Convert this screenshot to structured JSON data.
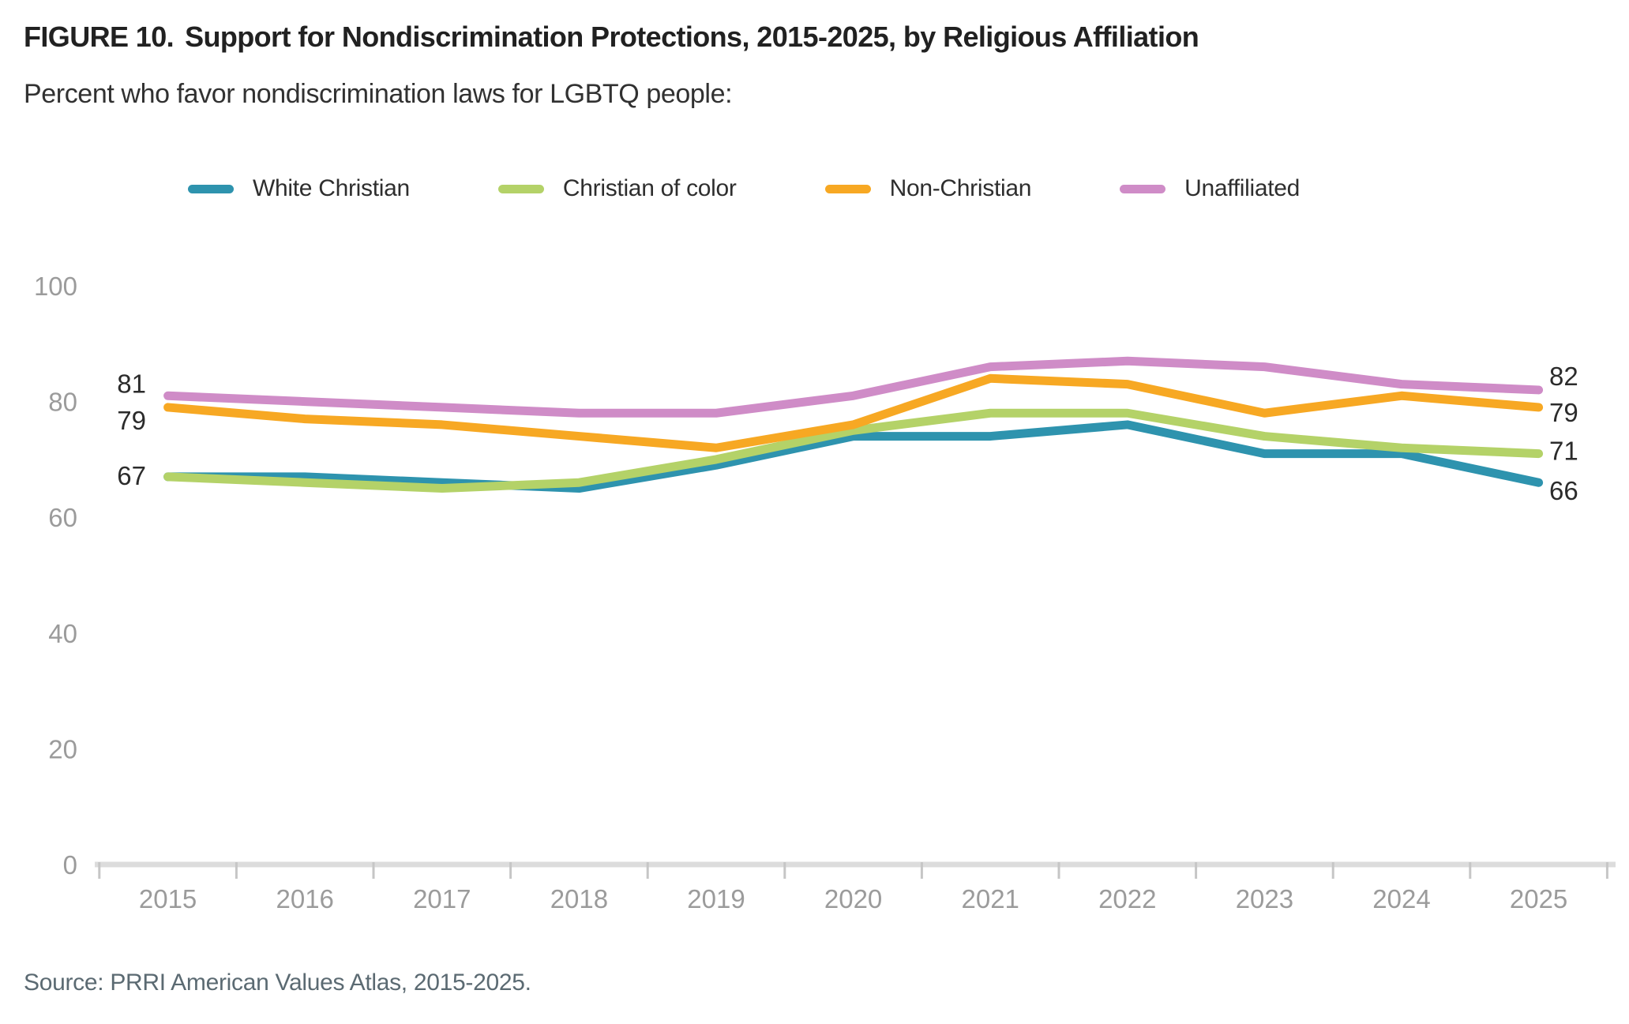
{
  "header": {
    "figure_label": "FIGURE 10.",
    "title": "Support for Nondiscrimination Protections, 2015-2025, by Religious Affiliation",
    "subtitle": "Percent who favor nondiscrimination laws for LGBTQ people:"
  },
  "chart_data": {
    "type": "line",
    "title": "Support for Nondiscrimination Protections, 2015-2025, by Religious Affiliation",
    "categories": [
      2015,
      2016,
      2017,
      2018,
      2019,
      2020,
      2021,
      2022,
      2023,
      2024,
      2025
    ],
    "series": [
      {
        "name": "White Christian",
        "color": "#2e93ae",
        "values": [
          67,
          67,
          66,
          65,
          69,
          74,
          74,
          76,
          71,
          71,
          66
        ]
      },
      {
        "name": "Christian of color",
        "color": "#b4d268",
        "values": [
          67,
          66,
          65,
          66,
          70,
          75,
          78,
          78,
          74,
          72,
          71
        ]
      },
      {
        "name": "Non-Christian",
        "color": "#f7a823",
        "values": [
          79,
          77,
          76,
          74,
          72,
          76,
          84,
          83,
          78,
          81,
          79
        ]
      },
      {
        "name": "Unaffiliated",
        "color": "#cf8cc7",
        "values": [
          81,
          80,
          79,
          78,
          78,
          81,
          86,
          87,
          86,
          83,
          82
        ]
      }
    ],
    "ylim": [
      0,
      100
    ],
    "yticks": [
      0,
      20,
      40,
      60,
      80,
      100
    ],
    "xlabel": "",
    "ylabel": "",
    "grid": false,
    "legend_position": "top",
    "edge_labels": {
      "left": [
        "81",
        "79",
        "67"
      ],
      "right": [
        "82",
        "79",
        "71",
        "66"
      ]
    }
  },
  "colors": {
    "axis_line": "#dcdcdc",
    "tick_mark": "#c6c6c6",
    "tick_label": "#9b9b9b",
    "edge_label": "#2b2b2b"
  },
  "source": "Source: PRRI American Values Atlas, 2015-2025."
}
